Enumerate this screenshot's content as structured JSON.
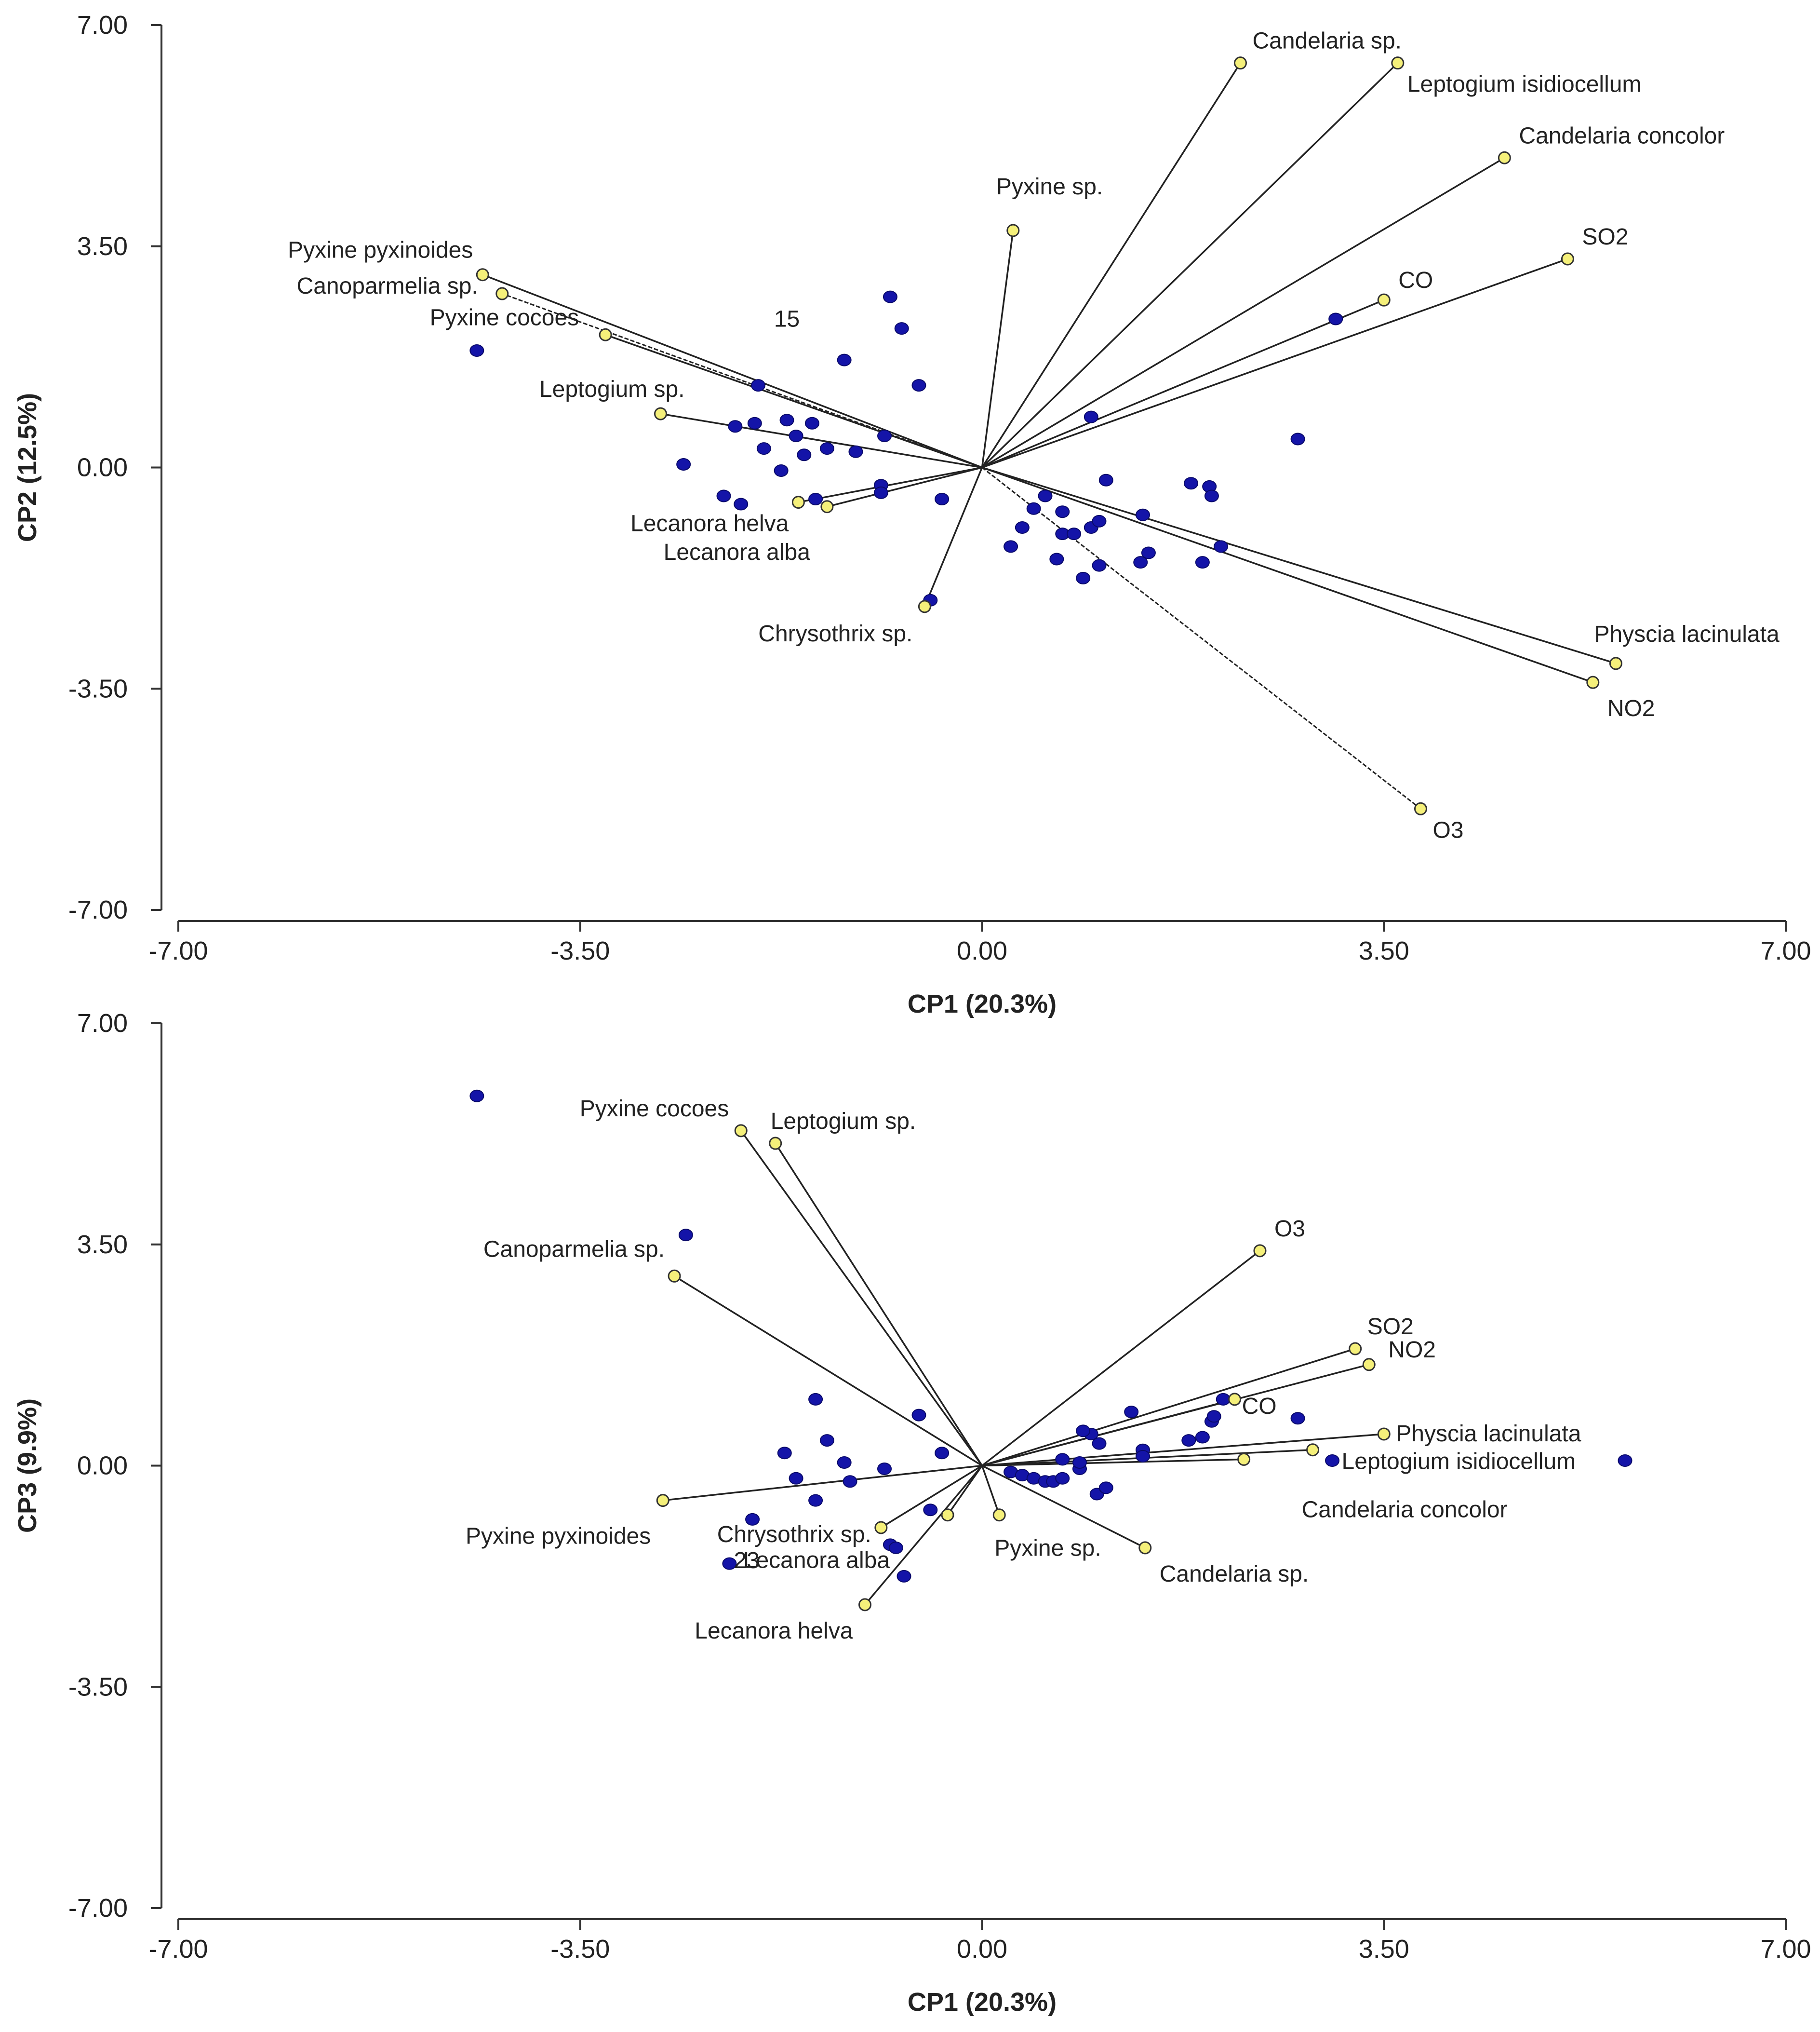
{
  "chart_data": [
    {
      "type": "scatter",
      "subtype": "biplot",
      "title": "",
      "xlabel": "CP1 (20.3%)",
      "ylabel": "CP2 (12.5%)",
      "xlim": [
        -7,
        7
      ],
      "ylim": [
        -7,
        7
      ],
      "xticks": [
        "-7.00",
        "-3.50",
        "0.00",
        "3.50",
        "7.00"
      ],
      "yticks": [
        "7.00",
        "3.50",
        "0.00",
        "-3.50",
        "-7.00"
      ],
      "vectors": [
        {
          "label": "Candelaria sp.",
          "x": 2.25,
          "y": 6.4,
          "dashed": false
        },
        {
          "label": "Leptogium isidiocellum",
          "x": 3.62,
          "y": 6.4,
          "dashed": false
        },
        {
          "label": "Candelaria concolor",
          "x": 4.55,
          "y": 4.9,
          "dashed": false
        },
        {
          "label": "Pyxine sp.",
          "x": 0.27,
          "y": 3.75,
          "dashed": false
        },
        {
          "label": "SO2",
          "x": 5.1,
          "y": 3.3,
          "dashed": false
        },
        {
          "label": "CO",
          "x": 3.5,
          "y": 2.65,
          "dashed": false
        },
        {
          "label": "Pyxine pyxinoides",
          "x": -4.35,
          "y": 3.05,
          "dashed": false
        },
        {
          "label": "Canoparmelia sp.",
          "x": -4.18,
          "y": 2.75,
          "dashed": true
        },
        {
          "label": "Pyxine cocoes",
          "x": -3.28,
          "y": 2.1,
          "dashed": false
        },
        {
          "label": "Leptogium sp.",
          "x": -2.8,
          "y": 0.85,
          "dashed": false
        },
        {
          "label": "Lecanora helva",
          "x": -1.6,
          "y": -0.55,
          "dashed": false
        },
        {
          "label": "Lecanora alba",
          "x": -1.35,
          "y": -0.62,
          "dashed": false
        },
        {
          "label": "Chrysothrix sp.",
          "x": -0.5,
          "y": -2.2,
          "dashed": false
        },
        {
          "label": "Physcia lacinulata",
          "x": 5.52,
          "y": -3.1,
          "dashed": false
        },
        {
          "label": "NO2",
          "x": 5.32,
          "y": -3.4,
          "dashed": false
        },
        {
          "label": "O3",
          "x": 3.82,
          "y": -5.4,
          "dashed": true
        }
      ],
      "points": [
        {
          "x": -4.4,
          "y": 1.85
        },
        {
          "x": -2.6,
          "y": 0.05
        },
        {
          "x": -2.25,
          "y": -0.45
        },
        {
          "x": -2.1,
          "y": -0.58
        },
        {
          "x": -1.95,
          "y": 1.3
        },
        {
          "x": -1.98,
          "y": 0.7
        },
        {
          "x": -2.15,
          "y": 0.65
        },
        {
          "x": -1.9,
          "y": 0.3
        },
        {
          "x": -1.75,
          "y": -0.05
        },
        {
          "x": -1.7,
          "y": 0.75
        },
        {
          "x": -1.62,
          "y": 0.5
        },
        {
          "x": -1.48,
          "y": 0.7
        },
        {
          "x": -1.35,
          "y": 0.3
        },
        {
          "x": -1.55,
          "y": 0.2
        },
        {
          "x": -1.1,
          "y": 0.25
        },
        {
          "x": -1.2,
          "y": 1.7
        },
        {
          "x": -0.85,
          "y": 0.5
        },
        {
          "x": -0.8,
          "y": 2.7
        },
        {
          "x": -0.7,
          "y": 2.2
        },
        {
          "x": -0.55,
          "y": 1.3
        },
        {
          "x": -0.88,
          "y": -0.28
        },
        {
          "x": -0.88,
          "y": -0.4
        },
        {
          "x": -0.35,
          "y": -0.5
        },
        {
          "x": -1.45,
          "y": -0.5
        },
        {
          "x": -0.45,
          "y": -2.1
        },
        {
          "x": 0.45,
          "y": -0.65
        },
        {
          "x": 0.55,
          "y": -0.45
        },
        {
          "x": 0.7,
          "y": -0.7
        },
        {
          "x": 0.35,
          "y": -0.95
        },
        {
          "x": 0.25,
          "y": -1.25
        },
        {
          "x": 0.7,
          "y": -1.05
        },
        {
          "x": 0.8,
          "y": -1.05
        },
        {
          "x": 0.95,
          "y": -0.95
        },
        {
          "x": 1.02,
          "y": -0.85
        },
        {
          "x": 1.08,
          "y": -0.2
        },
        {
          "x": 0.65,
          "y": -1.45
        },
        {
          "x": 0.88,
          "y": -1.75
        },
        {
          "x": 1.02,
          "y": -1.55
        },
        {
          "x": 1.38,
          "y": -1.5
        },
        {
          "x": 1.45,
          "y": -1.35
        },
        {
          "x": 1.4,
          "y": -0.75
        },
        {
          "x": 0.95,
          "y": 0.8
        },
        {
          "x": 1.82,
          "y": -0.25
        },
        {
          "x": 1.98,
          "y": -0.3
        },
        {
          "x": 2.0,
          "y": -0.45
        },
        {
          "x": 1.92,
          "y": -1.5
        },
        {
          "x": 2.08,
          "y": -1.25
        },
        {
          "x": 2.75,
          "y": 0.45
        },
        {
          "x": 3.08,
          "y": 2.35
        }
      ],
      "annotations": [
        {
          "text": "15",
          "x": -1.7,
          "y": 2.35
        }
      ]
    },
    {
      "type": "scatter",
      "subtype": "biplot",
      "title": "",
      "xlabel": "CP1 (20.3%)",
      "ylabel": "CP3 (9.9%)",
      "xlim": [
        -7,
        7
      ],
      "ylim": [
        -7,
        7
      ],
      "xticks": [
        "-7.00",
        "-3.50",
        "0.00",
        "3.50",
        "7.00"
      ],
      "yticks": [
        "7.00",
        "3.50",
        "0.00",
        "-3.50",
        "-7.00"
      ],
      "vectors": [
        {
          "label": "Pyxine cocoes",
          "x": -2.1,
          "y": 5.3,
          "dashed": false
        },
        {
          "label": "Leptogium sp.",
          "x": -1.8,
          "y": 5.1,
          "dashed": false
        },
        {
          "label": "Canoparmelia sp.",
          "x": -2.68,
          "y": 3.0,
          "dashed": false
        },
        {
          "label": "Pyxine pyxinoides",
          "x": -2.78,
          "y": -0.55,
          "dashed": false
        },
        {
          "label": "Chrysothrix sp.",
          "x": -0.88,
          "y": -0.98,
          "dashed": false
        },
        {
          "label": "Lecanora alba",
          "x": -0.3,
          "y": -0.78,
          "dashed": false
        },
        {
          "label": "Lecanora helva",
          "x": -1.02,
          "y": -2.2,
          "dashed": false
        },
        {
          "label": "Pyxine sp.",
          "x": 0.15,
          "y": -0.78,
          "dashed": false
        },
        {
          "label": "Candelaria sp.",
          "x": 1.42,
          "y": -1.3,
          "dashed": false
        },
        {
          "label": "O3",
          "x": 2.42,
          "y": 3.4,
          "dashed": false
        },
        {
          "label": "SO2",
          "x": 3.25,
          "y": 1.85,
          "dashed": false
        },
        {
          "label": "NO2",
          "x": 3.37,
          "y": 1.6,
          "dashed": false
        },
        {
          "label": "CO",
          "x": 2.2,
          "y": 1.05,
          "dashed": false
        },
        {
          "label": "Physcia lacinulata",
          "x": 3.5,
          "y": 0.5,
          "dashed": false
        },
        {
          "label": "Leptogium isidiocellum",
          "x": 2.88,
          "y": 0.25,
          "dashed": false
        },
        {
          "label": "Candelaria concolor",
          "x": 2.28,
          "y": 0.1,
          "dashed": false
        }
      ],
      "points": [
        {
          "x": -4.4,
          "y": 5.85
        },
        {
          "x": -2.58,
          "y": 3.65
        },
        {
          "x": -1.45,
          "y": 1.05
        },
        {
          "x": -1.35,
          "y": 0.4
        },
        {
          "x": -1.72,
          "y": 0.2
        },
        {
          "x": -1.62,
          "y": -0.2
        },
        {
          "x": -1.2,
          "y": 0.05
        },
        {
          "x": -1.15,
          "y": -0.25
        },
        {
          "x": -1.45,
          "y": -0.55
        },
        {
          "x": -0.85,
          "y": -0.05
        },
        {
          "x": -0.55,
          "y": 0.8
        },
        {
          "x": -0.35,
          "y": 0.2
        },
        {
          "x": -2.0,
          "y": -0.85
        },
        {
          "x": -2.2,
          "y": -1.55
        },
        {
          "x": -0.8,
          "y": -1.25
        },
        {
          "x": -0.75,
          "y": -1.3
        },
        {
          "x": -0.45,
          "y": -0.7
        },
        {
          "x": -0.68,
          "y": -1.75
        },
        {
          "x": 0.25,
          "y": -0.1
        },
        {
          "x": 0.35,
          "y": -0.15
        },
        {
          "x": 0.45,
          "y": -0.2
        },
        {
          "x": 0.55,
          "y": -0.25
        },
        {
          "x": 0.62,
          "y": -0.25
        },
        {
          "x": 0.7,
          "y": -0.2
        },
        {
          "x": 0.7,
          "y": 0.1
        },
        {
          "x": 0.85,
          "y": -0.05
        },
        {
          "x": 0.95,
          "y": 0.5
        },
        {
          "x": 1.02,
          "y": 0.35
        },
        {
          "x": 1.0,
          "y": -0.45
        },
        {
          "x": 1.08,
          "y": -0.35
        },
        {
          "x": 0.88,
          "y": 0.55
        },
        {
          "x": 1.3,
          "y": 0.85
        },
        {
          "x": 1.4,
          "y": 0.25
        },
        {
          "x": 1.4,
          "y": 0.15
        },
        {
          "x": 1.8,
          "y": 0.4
        },
        {
          "x": 1.92,
          "y": 0.45
        },
        {
          "x": 2.0,
          "y": 0.7
        },
        {
          "x": 2.02,
          "y": 0.78
        },
        {
          "x": 2.1,
          "y": 1.05
        },
        {
          "x": 2.75,
          "y": 0.75
        },
        {
          "x": 3.05,
          "y": 0.08
        },
        {
          "x": 5.6,
          "y": 0.08
        },
        {
          "x": 0.85,
          "y": 0.05
        }
      ],
      "annotations": [
        {
          "text": "23",
          "x": -2.05,
          "y": -1.5
        }
      ]
    }
  ]
}
